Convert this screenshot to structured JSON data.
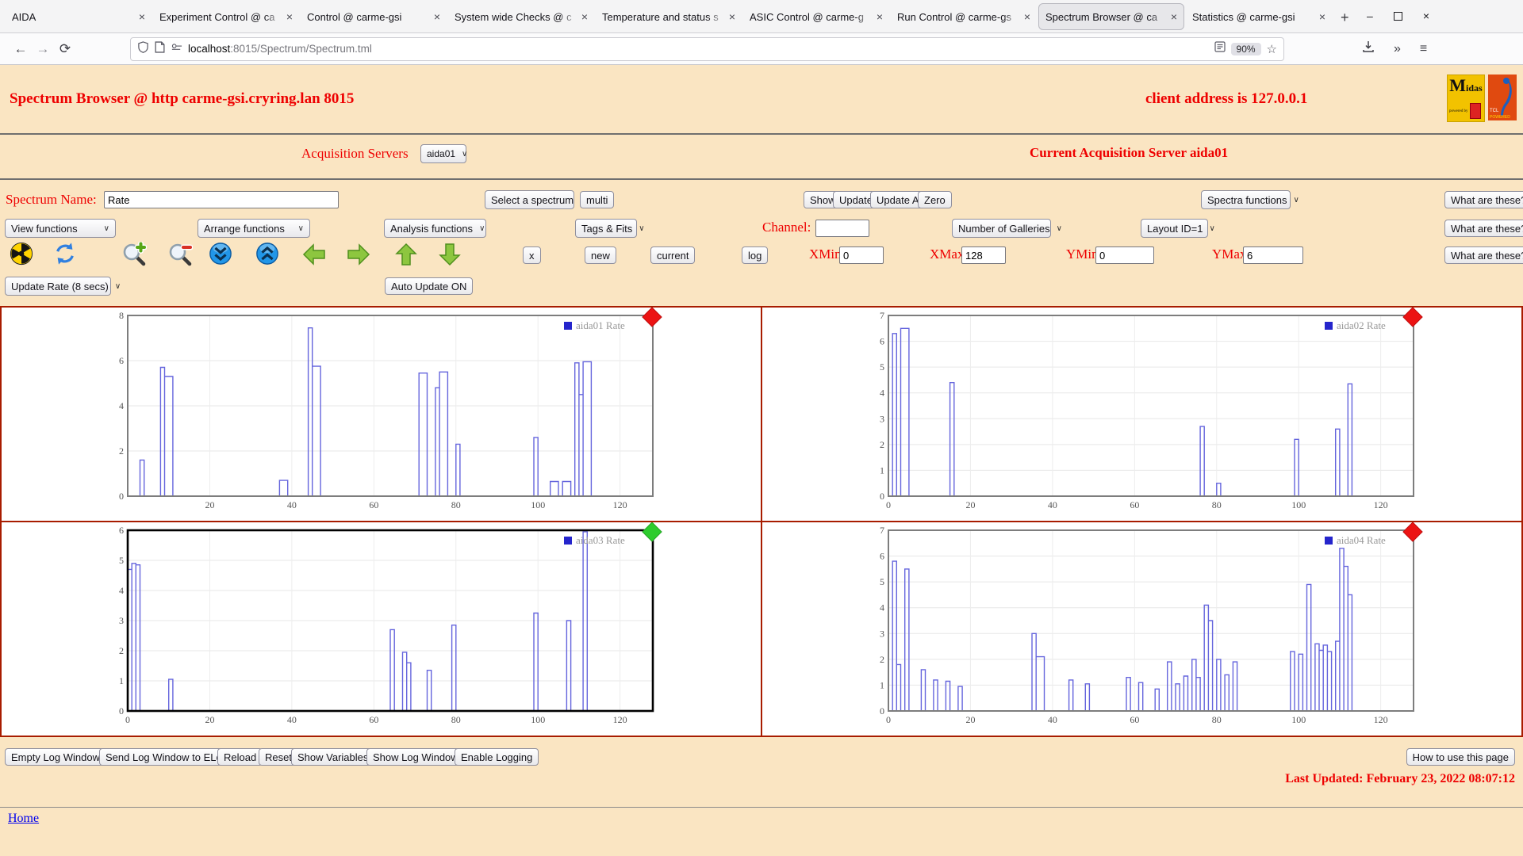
{
  "browser": {
    "tabs": [
      {
        "title": "AIDA"
      },
      {
        "title": "Experiment Control @ ca"
      },
      {
        "title": "Control @ carme-gsi"
      },
      {
        "title": "System wide Checks @ c"
      },
      {
        "title": "Temperature and status s"
      },
      {
        "title": "ASIC Control @ carme-g"
      },
      {
        "title": "Run Control @ carme-gs"
      },
      {
        "title": "Spectrum Browser @ ca"
      },
      {
        "title": "Statistics @ carme-gsi"
      }
    ],
    "active_tab_index": 7,
    "new_tab_label": "+",
    "url_host": "localhost",
    "url_path": ":8015/Spectrum/Spectrum.tml",
    "zoom_badge": "90%",
    "nav_icons": [
      "back-icon",
      "forward-icon",
      "reload-icon",
      "shield-icon",
      "page-icon",
      "permissions-icon",
      "reader-icon",
      "star-icon",
      "download-icon",
      "overflow-icon",
      "menu-icon"
    ],
    "window_controls": {
      "minimize": "–",
      "close": "×"
    }
  },
  "header": {
    "title": "Spectrum Browser @ http carme-gsi.cryring.lan 8015",
    "client_address": "client address is 127.0.0.1",
    "midas_logo_m": "M",
    "midas_logo_rest": "idas",
    "midas_powered": "powered by",
    "tcl_logo": "TCL",
    "tcl_powered": "POWERED"
  },
  "acquisition": {
    "label": "Acquisition Servers",
    "selected_server": "aida01",
    "current_server_text": "Current Acquisition Server aida01"
  },
  "controls": {
    "spectrum_name_label": "Spectrum Name:",
    "spectrum_name_value": "Rate",
    "select_spectrum": "Select a spectrum",
    "multi": "multi",
    "show": "Show",
    "update": "Update",
    "update_all": "Update All",
    "zero": "Zero",
    "spectra_functions": "Spectra functions",
    "what_are_these": "What are these?",
    "view_functions": "View functions",
    "arrange_functions": "Arrange functions",
    "analysis_functions": "Analysis functions",
    "tags_fits": "Tags & Fits",
    "channel_label": "Channel:",
    "channel_value": "",
    "number_of_galleries": "Number of Galleries",
    "layout_id": "Layout ID=1",
    "toolbar_icons": [
      "radioactive-icon",
      "refresh-icon",
      "zoom-in-icon",
      "zoom-out-icon",
      "double-arrow-down-icon",
      "double-arrow-up-icon",
      "arrow-left-icon",
      "arrow-right-icon",
      "arrow-up-icon",
      "arrow-down-icon"
    ],
    "x_button": "x",
    "new_button": "new",
    "current_button": "current",
    "log_button": "log",
    "xmin_label": "XMin",
    "xmin_value": "0",
    "xmax_label": "XMax",
    "xmax_value": "128",
    "ymin_label": "YMin",
    "ymin_value": "0",
    "ymax_label": "YMax",
    "ymax_value": "6",
    "update_rate": "Update Rate (8 secs)",
    "auto_update": "Auto Update ON"
  },
  "chart_data": [
    {
      "type": "step-histogram",
      "name": "aida01 Rate",
      "legend_position": "top-right",
      "xlim": [
        0,
        128
      ],
      "ylim": [
        0,
        8
      ],
      "xticks": [
        20,
        40,
        60,
        80,
        100,
        120
      ],
      "yticks": [
        0,
        2,
        4,
        6,
        8
      ],
      "grid": true,
      "selected": false,
      "marker_color": "#ec1313",
      "bars": [
        [
          3,
          1,
          1.6
        ],
        [
          8,
          1,
          5.7
        ],
        [
          9,
          2,
          5.3
        ],
        [
          37,
          2,
          0.7
        ],
        [
          44,
          1,
          7.45
        ],
        [
          45,
          2,
          5.75
        ],
        [
          71,
          2,
          5.45
        ],
        [
          75,
          1,
          4.8
        ],
        [
          76,
          2,
          5.5
        ],
        [
          80,
          1,
          2.3
        ],
        [
          99,
          1,
          2.6
        ],
        [
          103,
          2,
          0.65
        ],
        [
          106,
          2,
          0.65
        ],
        [
          109,
          1,
          5.9
        ],
        [
          110,
          1,
          4.5
        ],
        [
          111,
          2,
          5.95
        ]
      ]
    },
    {
      "type": "step-histogram",
      "name": "aida02 Rate",
      "legend_position": "top-right",
      "xlim": [
        0,
        128
      ],
      "ylim": [
        0,
        7
      ],
      "xticks": [
        0,
        20,
        40,
        60,
        80,
        100,
        120
      ],
      "yticks": [
        0,
        1,
        2,
        3,
        4,
        5,
        6,
        7
      ],
      "grid": true,
      "selected": false,
      "marker_color": "#ec1313",
      "bars": [
        [
          1,
          1,
          6.3
        ],
        [
          3,
          2,
          6.5
        ],
        [
          15,
          1,
          4.4
        ],
        [
          76,
          1,
          2.7
        ],
        [
          80,
          1,
          0.5
        ],
        [
          99,
          1,
          2.2
        ],
        [
          109,
          1,
          2.6
        ],
        [
          112,
          1,
          4.35
        ]
      ]
    },
    {
      "type": "step-histogram",
      "name": "aida03 Rate",
      "legend_position": "top-right",
      "xlim": [
        0,
        128
      ],
      "ylim": [
        0,
        6
      ],
      "xticks": [
        0,
        20,
        40,
        60,
        80,
        100,
        120
      ],
      "yticks": [
        0,
        1,
        2,
        3,
        4,
        5,
        6
      ],
      "grid": true,
      "selected": true,
      "marker_color": "#2ecc2e",
      "bars": [
        [
          0,
          1,
          4.7
        ],
        [
          1,
          1,
          4.9
        ],
        [
          2,
          1,
          4.85
        ],
        [
          10,
          1,
          1.05
        ],
        [
          64,
          1,
          2.7
        ],
        [
          67,
          1,
          1.95
        ],
        [
          68,
          1,
          1.6
        ],
        [
          73,
          1,
          1.35
        ],
        [
          79,
          1,
          2.85
        ],
        [
          99,
          1,
          3.25
        ],
        [
          107,
          1,
          3.0
        ],
        [
          111,
          1,
          5.95
        ]
      ]
    },
    {
      "type": "step-histogram",
      "name": "aida04 Rate",
      "legend_position": "top-right",
      "xlim": [
        0,
        128
      ],
      "ylim": [
        0,
        7
      ],
      "xticks": [
        0,
        20,
        40,
        60,
        80,
        100,
        120
      ],
      "yticks": [
        0,
        1,
        2,
        3,
        4,
        5,
        6,
        7
      ],
      "grid": true,
      "selected": false,
      "marker_color": "#ec1313",
      "bars": [
        [
          1,
          1,
          5.8
        ],
        [
          2,
          1,
          1.8
        ],
        [
          4,
          1,
          5.5
        ],
        [
          8,
          1,
          1.6
        ],
        [
          11,
          1,
          1.2
        ],
        [
          14,
          1,
          1.15
        ],
        [
          17,
          1,
          0.95
        ],
        [
          35,
          1,
          3.0
        ],
        [
          36,
          2,
          2.1
        ],
        [
          44,
          1,
          1.2
        ],
        [
          48,
          1,
          1.05
        ],
        [
          58,
          1,
          1.3
        ],
        [
          61,
          1,
          1.1
        ],
        [
          65,
          1,
          0.85
        ],
        [
          68,
          1,
          1.9
        ],
        [
          70,
          1,
          1.05
        ],
        [
          72,
          1,
          1.35
        ],
        [
          74,
          1,
          2.0
        ],
        [
          75,
          1,
          1.3
        ],
        [
          77,
          1,
          4.1
        ],
        [
          78,
          1,
          3.5
        ],
        [
          80,
          1,
          2.0
        ],
        [
          82,
          1,
          1.4
        ],
        [
          84,
          1,
          1.9
        ],
        [
          98,
          1,
          2.3
        ],
        [
          100,
          1,
          2.2
        ],
        [
          102,
          1,
          4.9
        ],
        [
          104,
          1,
          2.6
        ],
        [
          105,
          1,
          2.35
        ],
        [
          106,
          1,
          2.55
        ],
        [
          107,
          1,
          2.3
        ],
        [
          109,
          1,
          2.7
        ],
        [
          110,
          1,
          6.3
        ],
        [
          111,
          1,
          5.6
        ],
        [
          112,
          1,
          4.5
        ]
      ]
    }
  ],
  "footer": {
    "buttons": [
      "Empty Log Window",
      "Send Log Window to ELog",
      "Reload",
      "Reset",
      "Show Variables",
      "Show Log Window",
      "Enable Logging"
    ],
    "help_button": "How to use this page",
    "last_updated": "Last Updated: February 23, 2022 08:07:12",
    "home_link": "Home"
  },
  "colors": {
    "page_background": "#fae5c2",
    "accent_red_text": "#ee0000",
    "gallery_border": "#a81c00",
    "histogram_line": "#6565dd",
    "legend_square": "#2525cc",
    "marker_red": "#ec1313",
    "marker_green": "#2ecc2e"
  }
}
